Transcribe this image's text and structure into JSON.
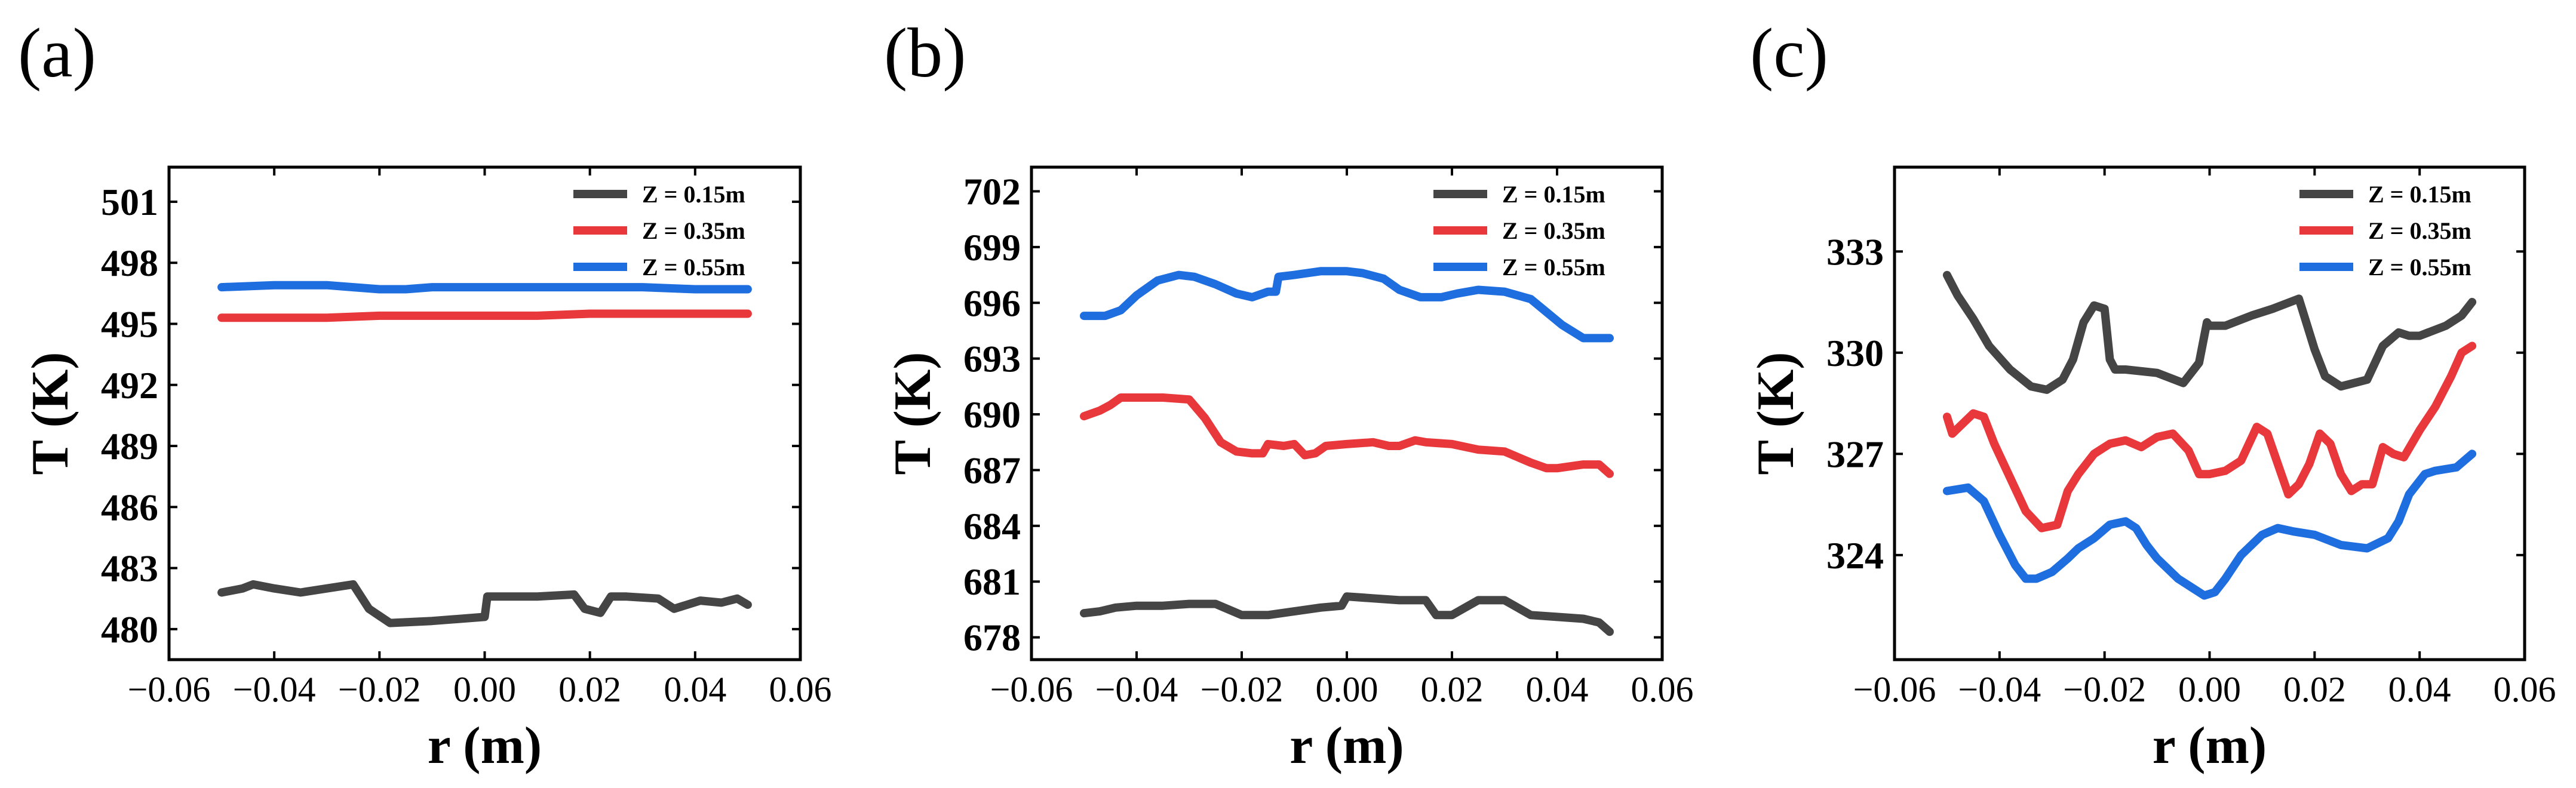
{
  "chart_data": [
    {
      "type": "line",
      "panel_label": "(a)",
      "xlabel": "r (m)",
      "ylabel": "T (K)",
      "xlim": [
        -0.06,
        0.06
      ],
      "ylim": [
        478.5,
        502.7
      ],
      "xticks": [
        -0.06,
        -0.04,
        -0.02,
        0.0,
        0.02,
        0.04,
        0.06
      ],
      "xtick_labels": [
        "−0.06",
        "−0.04",
        "−0.02",
        "0.00",
        "0.02",
        "0.04",
        "0.06"
      ],
      "yticks": [
        480,
        483,
        486,
        489,
        492,
        495,
        498,
        501
      ],
      "ytick_labels": [
        "480",
        "483",
        "486",
        "489",
        "492",
        "495",
        "498",
        "501"
      ],
      "legend": "top-right",
      "series": [
        {
          "name": "Z = 0.15m",
          "color": "#454545",
          "x": [
            -0.05,
            -0.046,
            -0.044,
            -0.04,
            -0.035,
            -0.03,
            -0.025,
            -0.022,
            -0.018,
            -0.01,
            0.0,
            0.0005,
            0.005,
            0.01,
            0.017,
            0.019,
            0.022,
            0.024,
            0.027,
            0.033,
            0.036,
            0.041,
            0.045,
            0.048,
            0.05
          ],
          "y": [
            481.8,
            482.0,
            482.2,
            482.0,
            481.8,
            482.0,
            482.2,
            481.0,
            480.3,
            480.4,
            480.6,
            481.6,
            481.6,
            481.6,
            481.7,
            481.0,
            480.8,
            481.6,
            481.6,
            481.5,
            481.0,
            481.4,
            481.3,
            481.5,
            481.2
          ]
        },
        {
          "name": "Z = 0.35m",
          "color": "#e8383b",
          "x": [
            -0.05,
            -0.04,
            -0.03,
            -0.02,
            -0.01,
            0.0,
            0.01,
            0.02,
            0.03,
            0.04,
            0.05
          ],
          "y": [
            495.3,
            495.3,
            495.3,
            495.4,
            495.4,
            495.4,
            495.4,
            495.5,
            495.5,
            495.5,
            495.5
          ]
        },
        {
          "name": "Z = 0.55m",
          "color": "#1f6ee0",
          "x": [
            -0.05,
            -0.04,
            -0.03,
            -0.025,
            -0.02,
            -0.015,
            -0.01,
            0.0,
            0.01,
            0.02,
            0.03,
            0.04,
            0.05
          ],
          "y": [
            496.8,
            496.9,
            496.9,
            496.8,
            496.7,
            496.7,
            496.8,
            496.8,
            496.8,
            496.8,
            496.8,
            496.7,
            496.7
          ]
        }
      ]
    },
    {
      "type": "line",
      "panel_label": "(b)",
      "xlabel": "r (m)",
      "ylabel": "T (K)",
      "xlim": [
        -0.06,
        0.06
      ],
      "ylim": [
        676.8,
        703.3
      ],
      "xticks": [
        -0.06,
        -0.04,
        -0.02,
        0.0,
        0.02,
        0.04,
        0.06
      ],
      "xtick_labels": [
        "−0.06",
        "−0.04",
        "−0.02",
        "0.00",
        "0.02",
        "0.04",
        "0.06"
      ],
      "yticks": [
        678,
        681,
        684,
        687,
        690,
        693,
        696,
        699,
        702
      ],
      "ytick_labels": [
        "678",
        "681",
        "684",
        "687",
        "690",
        "693",
        "696",
        "699",
        "702"
      ],
      "legend": "top-right",
      "series": [
        {
          "name": "Z = 0.15m",
          "color": "#454545",
          "x": [
            -0.05,
            -0.047,
            -0.044,
            -0.04,
            -0.035,
            -0.03,
            -0.025,
            -0.02,
            -0.015,
            -0.01,
            -0.005,
            -0.001,
            0.0,
            0.005,
            0.01,
            0.015,
            0.017,
            0.02,
            0.025,
            0.03,
            0.035,
            0.04,
            0.045,
            0.048,
            0.05
          ],
          "y": [
            679.3,
            679.4,
            679.6,
            679.7,
            679.7,
            679.8,
            679.8,
            679.2,
            679.2,
            679.4,
            679.6,
            679.7,
            680.2,
            680.1,
            680.0,
            680.0,
            679.2,
            679.2,
            680.0,
            680.0,
            679.2,
            679.1,
            679.0,
            678.8,
            678.3
          ]
        },
        {
          "name": "Z = 0.35m",
          "color": "#e8383b",
          "x": [
            -0.05,
            -0.047,
            -0.045,
            -0.043,
            -0.04,
            -0.035,
            -0.03,
            -0.027,
            -0.024,
            -0.021,
            -0.018,
            -0.016,
            -0.015,
            -0.012,
            -0.01,
            -0.008,
            -0.006,
            -0.004,
            0.0,
            0.005,
            0.008,
            0.01,
            0.013,
            0.015,
            0.02,
            0.025,
            0.03,
            0.035,
            0.038,
            0.04,
            0.045,
            0.048,
            0.05
          ],
          "y": [
            689.9,
            690.2,
            690.5,
            690.9,
            690.9,
            690.9,
            690.8,
            689.8,
            688.5,
            688.0,
            687.9,
            687.9,
            688.4,
            688.3,
            688.4,
            687.8,
            687.9,
            688.3,
            688.4,
            688.5,
            688.3,
            688.3,
            688.6,
            688.5,
            688.4,
            688.1,
            688.0,
            687.4,
            687.1,
            687.1,
            687.3,
            687.3,
            686.8
          ]
        },
        {
          "name": "Z = 0.55m",
          "color": "#1f6ee0",
          "x": [
            -0.05,
            -0.046,
            -0.043,
            -0.04,
            -0.036,
            -0.032,
            -0.029,
            -0.025,
            -0.021,
            -0.018,
            -0.015,
            -0.0135,
            -0.013,
            -0.01,
            -0.005,
            0.0,
            0.003,
            0.007,
            0.01,
            0.014,
            0.018,
            0.021,
            0.025,
            0.03,
            0.035,
            0.038,
            0.041,
            0.045,
            0.048,
            0.05
          ],
          "y": [
            695.3,
            695.3,
            695.6,
            696.4,
            697.2,
            697.5,
            697.4,
            697.0,
            696.5,
            696.3,
            696.6,
            696.6,
            697.4,
            697.5,
            697.7,
            697.7,
            697.6,
            697.3,
            696.7,
            696.3,
            696.3,
            696.5,
            696.7,
            696.6,
            696.2,
            695.5,
            694.8,
            694.1,
            694.1,
            694.1
          ]
        }
      ]
    },
    {
      "type": "line",
      "panel_label": "(c)",
      "xlabel": "r (m)",
      "ylabel": "T (K)",
      "xlim": [
        -0.06,
        0.06
      ],
      "ylim": [
        320.9,
        335.5
      ],
      "xticks": [
        -0.06,
        -0.04,
        -0.02,
        0.0,
        0.02,
        0.04,
        0.06
      ],
      "xtick_labels": [
        "−0.06",
        "−0.04",
        "−0.02",
        "0.00",
        "0.02",
        "0.04",
        "0.06"
      ],
      "yticks": [
        324,
        327,
        330,
        333
      ],
      "ytick_labels": [
        "324",
        "327",
        "330",
        "333"
      ],
      "legend": "top-right",
      "series": [
        {
          "name": "Z = 0.15m",
          "color": "#454545",
          "x": [
            -0.05,
            -0.048,
            -0.045,
            -0.042,
            -0.038,
            -0.034,
            -0.031,
            -0.028,
            -0.026,
            -0.024,
            -0.022,
            -0.02,
            -0.019,
            -0.018,
            -0.016,
            -0.01,
            -0.005,
            -0.002,
            -0.0005,
            0.0,
            0.003,
            0.008,
            0.012,
            0.017,
            0.018,
            0.02,
            0.022,
            0.025,
            0.03,
            0.033,
            0.036,
            0.038,
            0.04,
            0.045,
            0.048,
            0.05
          ],
          "y": [
            332.3,
            331.7,
            331.0,
            330.2,
            329.5,
            329.0,
            328.9,
            329.2,
            329.8,
            330.9,
            331.4,
            331.3,
            329.8,
            329.5,
            329.5,
            329.4,
            329.1,
            329.7,
            330.9,
            330.8,
            330.8,
            331.1,
            331.3,
            331.6,
            331.1,
            330.1,
            329.3,
            329.0,
            329.2,
            330.2,
            330.6,
            330.5,
            330.5,
            330.8,
            331.1,
            331.5
          ]
        },
        {
          "name": "Z = 0.35m",
          "color": "#e8383b",
          "x": [
            -0.05,
            -0.049,
            -0.047,
            -0.045,
            -0.043,
            -0.041,
            -0.038,
            -0.035,
            -0.032,
            -0.029,
            -0.027,
            -0.025,
            -0.022,
            -0.019,
            -0.016,
            -0.013,
            -0.01,
            -0.007,
            -0.004,
            -0.002,
            0.0,
            0.003,
            0.006,
            0.009,
            0.011,
            0.013,
            0.015,
            0.017,
            0.019,
            0.021,
            0.023,
            0.025,
            0.027,
            0.029,
            0.031,
            0.033,
            0.035,
            0.037,
            0.04,
            0.043,
            0.046,
            0.048,
            0.05
          ],
          "y": [
            328.1,
            327.6,
            327.9,
            328.2,
            328.1,
            327.3,
            326.3,
            325.3,
            324.8,
            324.9,
            325.9,
            326.4,
            327.0,
            327.3,
            327.4,
            327.2,
            327.5,
            327.6,
            327.1,
            326.4,
            326.4,
            326.5,
            326.8,
            327.8,
            327.6,
            326.7,
            325.8,
            326.1,
            326.7,
            327.6,
            327.3,
            326.4,
            325.9,
            326.1,
            326.1,
            327.2,
            327.0,
            326.9,
            327.7,
            328.4,
            329.3,
            330.0,
            330.2
          ]
        },
        {
          "name": "Z = 0.55m",
          "color": "#1f6ee0",
          "x": [
            -0.05,
            -0.046,
            -0.043,
            -0.04,
            -0.037,
            -0.035,
            -0.033,
            -0.03,
            -0.027,
            -0.025,
            -0.022,
            -0.019,
            -0.016,
            -0.014,
            -0.012,
            -0.01,
            -0.006,
            -0.003,
            -0.001,
            0.001,
            0.003,
            0.006,
            0.01,
            0.013,
            0.016,
            0.02,
            0.025,
            0.03,
            0.034,
            0.036,
            0.038,
            0.041,
            0.043,
            0.047,
            0.05
          ],
          "y": [
            325.9,
            326.0,
            325.6,
            324.6,
            323.7,
            323.3,
            323.3,
            323.5,
            323.9,
            324.2,
            324.5,
            324.9,
            325.0,
            324.8,
            324.3,
            323.9,
            323.3,
            323.0,
            322.8,
            322.9,
            323.3,
            324.0,
            324.6,
            324.8,
            324.7,
            324.6,
            324.3,
            324.2,
            324.5,
            325.0,
            325.8,
            326.4,
            326.5,
            326.6,
            327.0
          ]
        }
      ]
    }
  ]
}
